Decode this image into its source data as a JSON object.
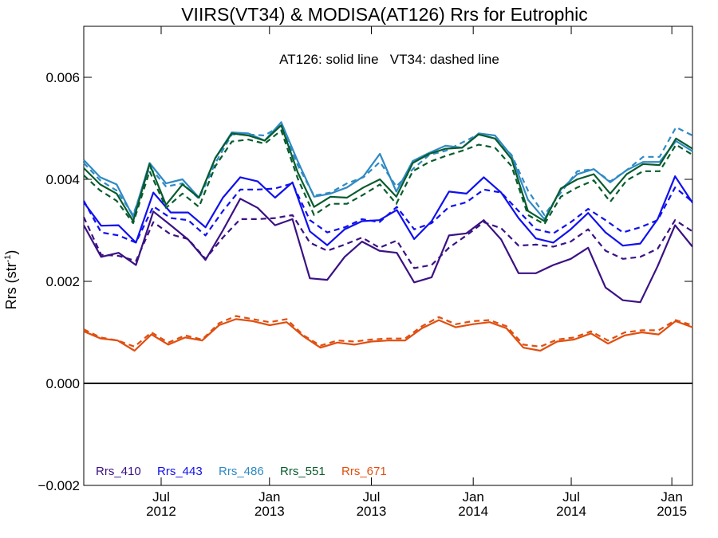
{
  "chart_data": {
    "type": "line",
    "title": "VIIRS(VT34) & MODISA(AT126)  Rrs for Eutrophic",
    "annotation": "AT126: solid line   VT34: dashed line",
    "ylabel": "Rrs (str",
    "ylabel_sup": "-1",
    "ylabel_close": ")",
    "ylim": [
      -0.002,
      0.007
    ],
    "xlim": [
      0,
      47.2
    ],
    "yticks": [
      {
        "v": -0.002,
        "label": "−0.002"
      },
      {
        "v": 0.0,
        "label": "0.000"
      },
      {
        "v": 0.002,
        "label": "0.002"
      },
      {
        "v": 0.004,
        "label": "0.004"
      },
      {
        "v": 0.006,
        "label": "0.006"
      }
    ],
    "xticks": [
      {
        "x": 6,
        "label": "Jul",
        "label2": "2012"
      },
      {
        "x": 14.4,
        "label": "Jan",
        "label2": "2013"
      },
      {
        "x": 22.3,
        "label": "Jul",
        "label2": "2013"
      },
      {
        "x": 30.2,
        "label": "Jan",
        "label2": "2014"
      },
      {
        "x": 37.8,
        "label": "Jul",
        "label2": "2014"
      },
      {
        "x": 45.6,
        "label": "Jan",
        "label2": "2015"
      }
    ],
    "zero_line": true,
    "series": [
      {
        "name": "Rrs_410",
        "color": "#3b1183",
        "solid": [
          0.0031,
          0.00248,
          0.00256,
          0.00232,
          0.00337,
          0.0031,
          0.00282,
          0.00242,
          0.003,
          0.00362,
          0.00344,
          0.0031,
          0.00322,
          0.00206,
          0.00203,
          0.00248,
          0.00278,
          0.0026,
          0.00256,
          0.00198,
          0.00208,
          0.0029,
          0.00294,
          0.0032,
          0.00282,
          0.00216,
          0.00216,
          0.00232,
          0.00244,
          0.00266,
          0.00188,
          0.00163,
          0.00159,
          0.0023,
          0.0031,
          0.00268
        ],
        "dashed": [
          0.00326,
          0.00252,
          0.0025,
          0.0024,
          0.00316,
          0.00292,
          0.00283,
          0.00244,
          0.00286,
          0.00322,
          0.00322,
          0.00324,
          0.0033,
          0.00276,
          0.0026,
          0.00272,
          0.00286,
          0.00266,
          0.0028,
          0.00226,
          0.00232,
          0.00266,
          0.0029,
          0.00316,
          0.00304,
          0.0027,
          0.00272,
          0.00268,
          0.00278,
          0.00302,
          0.0026,
          0.00244,
          0.00248,
          0.00264,
          0.0032,
          0.00298
        ]
      },
      {
        "name": "Rrs_443",
        "color": "#1010ee",
        "solid": [
          0.00355,
          0.00309,
          0.0031,
          0.00276,
          0.00374,
          0.00335,
          0.00335,
          0.00306,
          0.00364,
          0.00404,
          0.00396,
          0.00364,
          0.00394,
          0.00298,
          0.00271,
          0.00302,
          0.00318,
          0.0032,
          0.0034,
          0.00283,
          0.00318,
          0.00376,
          0.00372,
          0.00404,
          0.00374,
          0.00324,
          0.00284,
          0.00276,
          0.00302,
          0.00334,
          0.00296,
          0.0027,
          0.00274,
          0.00322,
          0.00406,
          0.00354
        ],
        "dashed": [
          0.00358,
          0.00296,
          0.0029,
          0.00276,
          0.00347,
          0.00324,
          0.0032,
          0.0029,
          0.00338,
          0.0038,
          0.0038,
          0.00382,
          0.00392,
          0.0032,
          0.00296,
          0.00306,
          0.00322,
          0.00316,
          0.00346,
          0.00302,
          0.00314,
          0.00346,
          0.00355,
          0.0038,
          0.00374,
          0.00338,
          0.00302,
          0.00294,
          0.00316,
          0.00342,
          0.0032,
          0.00296,
          0.00306,
          0.0032,
          0.00384,
          0.00356
        ]
      },
      {
        "name": "Rrs_486",
        "color": "#2f8ac4",
        "solid": [
          0.00438,
          0.00404,
          0.0039,
          0.00326,
          0.00432,
          0.00392,
          0.004,
          0.00364,
          0.00442,
          0.00492,
          0.0049,
          0.00476,
          0.00512,
          0.00436,
          0.00366,
          0.00372,
          0.00384,
          0.00406,
          0.0045,
          0.00376,
          0.00436,
          0.00452,
          0.00466,
          0.00462,
          0.0049,
          0.00486,
          0.00446,
          0.0036,
          0.00322,
          0.0038,
          0.0041,
          0.0042,
          0.00394,
          0.00418,
          0.00434,
          0.00434,
          0.00475,
          0.00455
        ],
        "dashed": [
          0.00432,
          0.00398,
          0.00378,
          0.0033,
          0.00424,
          0.00386,
          0.00392,
          0.00362,
          0.00432,
          0.00488,
          0.00488,
          0.00486,
          0.00506,
          0.00428,
          0.00368,
          0.00374,
          0.00392,
          0.00404,
          0.00434,
          0.00386,
          0.0042,
          0.00448,
          0.00456,
          0.00472,
          0.00488,
          0.0048,
          0.00448,
          0.00378,
          0.0033,
          0.00374,
          0.00416,
          0.0042,
          0.00396,
          0.00418,
          0.00444,
          0.00444,
          0.00502,
          0.00486
        ]
      },
      {
        "name": "Rrs_551",
        "color": "#085c2e",
        "solid": [
          0.00422,
          0.0039,
          0.00372,
          0.00318,
          0.0043,
          0.0035,
          0.0039,
          0.00364,
          0.00442,
          0.0049,
          0.00486,
          0.00476,
          0.00506,
          0.00414,
          0.00346,
          0.00366,
          0.00364,
          0.00384,
          0.004,
          0.00366,
          0.00432,
          0.0045,
          0.0046,
          0.00462,
          0.00488,
          0.0048,
          0.0044,
          0.00338,
          0.00318,
          0.00382,
          0.004,
          0.0041,
          0.00372,
          0.0041,
          0.0043,
          0.00428,
          0.0048,
          0.0046
        ],
        "dashed": [
          0.00408,
          0.00378,
          0.00358,
          0.00314,
          0.00416,
          0.00344,
          0.00372,
          0.00346,
          0.00426,
          0.00474,
          0.00478,
          0.0047,
          0.00496,
          0.00402,
          0.0033,
          0.00352,
          0.00352,
          0.0037,
          0.0039,
          0.00352,
          0.00416,
          0.00434,
          0.00446,
          0.00456,
          0.00468,
          0.00462,
          0.00426,
          0.0033,
          0.00312,
          0.00366,
          0.00384,
          0.00398,
          0.00356,
          0.00398,
          0.00416,
          0.00416,
          0.00468,
          0.00448
        ]
      },
      {
        "name": "Rrs_671",
        "color": "#e04f10",
        "solid": [
          0.00102,
          0.00088,
          0.00084,
          0.00064,
          0.00096,
          0.00076,
          0.0009,
          0.00084,
          0.00114,
          0.00126,
          0.00122,
          0.00114,
          0.0012,
          0.00092,
          0.0007,
          0.0008,
          0.00076,
          0.00082,
          0.00084,
          0.00084,
          0.00108,
          0.00124,
          0.0011,
          0.00116,
          0.0012,
          0.00108,
          0.0007,
          0.00064,
          0.00082,
          0.00086,
          0.00098,
          0.00078,
          0.00094,
          0.001,
          0.00096,
          0.00122,
          0.0011
        ],
        "dashed": [
          0.00106,
          0.0009,
          0.00084,
          0.00072,
          0.001,
          0.0008,
          0.00094,
          0.00086,
          0.00118,
          0.00132,
          0.00126,
          0.0012,
          0.00126,
          0.00094,
          0.00074,
          0.00084,
          0.00082,
          0.00086,
          0.00088,
          0.00088,
          0.00112,
          0.0013,
          0.00116,
          0.00122,
          0.00124,
          0.00112,
          0.00076,
          0.00072,
          0.00086,
          0.0009,
          0.00102,
          0.00084,
          0.001,
          0.00104,
          0.00104,
          0.00124,
          0.00114
        ]
      }
    ]
  }
}
